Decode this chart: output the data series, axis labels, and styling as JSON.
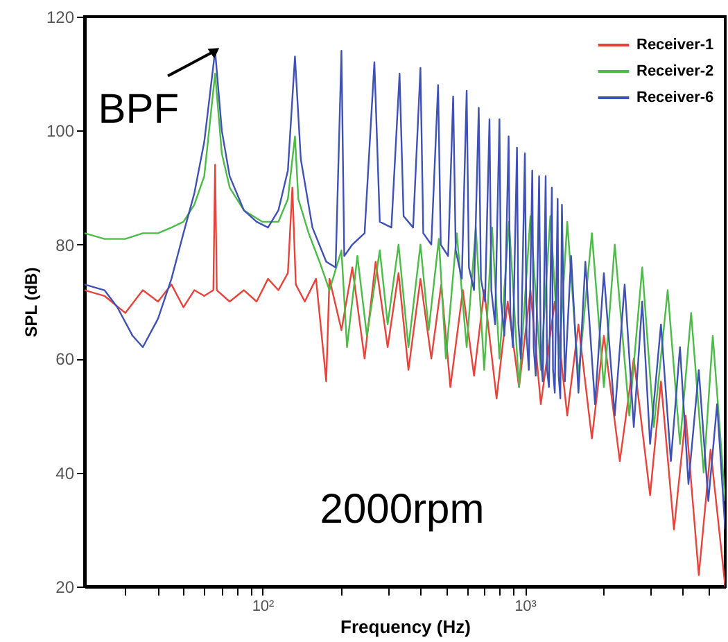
{
  "chart_data": {
    "type": "line",
    "xlabel": "Frequency (Hz)",
    "ylabel": "SPL (dB)",
    "log": "x",
    "xlim": [
      21,
      5800
    ],
    "ylim": [
      20,
      120
    ],
    "xticks": [
      {
        "value": 30,
        "label": null
      },
      {
        "value": 40,
        "label": null
      },
      {
        "value": 50,
        "label": null
      },
      {
        "value": 60,
        "label": null
      },
      {
        "value": 70,
        "label": null
      },
      {
        "value": 80,
        "label": null
      },
      {
        "value": 90,
        "label": null
      },
      {
        "value": 100,
        "label": "10²"
      },
      {
        "value": 200,
        "label": null
      },
      {
        "value": 300,
        "label": null
      },
      {
        "value": 400,
        "label": null
      },
      {
        "value": 500,
        "label": null
      },
      {
        "value": 600,
        "label": null
      },
      {
        "value": 700,
        "label": null
      },
      {
        "value": 800,
        "label": null
      },
      {
        "value": 900,
        "label": null
      },
      {
        "value": 1000,
        "label": "10³"
      },
      {
        "value": 2000,
        "label": null
      },
      {
        "value": 3000,
        "label": null
      },
      {
        "value": 4000,
        "label": null
      },
      {
        "value": 5000,
        "label": null
      }
    ],
    "yticks": [
      20,
      40,
      60,
      80,
      100,
      120
    ],
    "grid": false,
    "legend": "top right",
    "marker": "none",
    "line_style": "solid",
    "annotations": [
      {
        "text": "BPF",
        "x": 66,
        "y": 114
      },
      "2000rpm"
    ],
    "series": [
      {
        "name": "Receiver-1",
        "color": "#e8433a",
        "x": [
          21,
          25,
          30,
          35,
          40,
          45,
          50,
          55,
          60,
          65,
          66,
          67,
          75,
          85,
          95,
          105,
          115,
          125,
          130,
          134,
          145,
          160,
          175,
          180,
          200,
          220,
          245,
          270,
          300,
          330,
          360,
          400,
          440,
          480,
          520,
          580,
          640,
          700,
          780,
          860,
          950,
          1050,
          1150,
          1300,
          1450,
          1600,
          1800,
          2000,
          2300,
          2600,
          3000,
          3300,
          3700,
          4100,
          4600,
          5100,
          5800
        ],
        "values": [
          72,
          71,
          68,
          72,
          70,
          73,
          69,
          72,
          71,
          72,
          94,
          72,
          70,
          72,
          70,
          74,
          72,
          75,
          90,
          73,
          70,
          74,
          56,
          74,
          65,
          76,
          60,
          77,
          62,
          75,
          58,
          74,
          60,
          73,
          55,
          72,
          57,
          72,
          53,
          70,
          55,
          72,
          52,
          70,
          50,
          66,
          46,
          64,
          42,
          60,
          36,
          56,
          30,
          50,
          22,
          44,
          20
        ]
      },
      {
        "name": "Receiver-2",
        "color": "#4cbb47",
        "x": [
          21,
          25,
          30,
          35,
          40,
          45,
          50,
          55,
          60,
          66,
          70,
          75,
          85,
          100,
          115,
          125,
          133,
          137,
          150,
          165,
          180,
          200,
          210,
          230,
          250,
          280,
          300,
          330,
          360,
          400,
          430,
          470,
          500,
          550,
          600,
          650,
          700,
          750,
          800,
          870,
          950,
          1050,
          1150,
          1250,
          1350,
          1450,
          1600,
          1800,
          2000,
          2200,
          2500,
          2800,
          3100,
          3500,
          3900,
          4300,
          4800,
          5200,
          5800
        ],
        "values": [
          82,
          81,
          81,
          82,
          82,
          83,
          84,
          87,
          92,
          110,
          96,
          90,
          86,
          84,
          84,
          88,
          99,
          88,
          82,
          77,
          72,
          79,
          62,
          78,
          64,
          79,
          66,
          80,
          62,
          80,
          65,
          81,
          60,
          82,
          62,
          83,
          58,
          83,
          60,
          84,
          55,
          85,
          58,
          85,
          60,
          84,
          57,
          82,
          55,
          80,
          50,
          76,
          48,
          72,
          45,
          68,
          40,
          64,
          35
        ]
      },
      {
        "name": "Receiver-6",
        "color": "#3f51b5",
        "x": [
          21,
          25,
          28,
          32,
          35,
          40,
          45,
          50,
          55,
          60,
          66,
          70,
          75,
          85,
          95,
          105,
          115,
          125,
          133,
          140,
          155,
          175,
          190,
          200,
          205,
          220,
          245,
          267,
          280,
          310,
          333,
          345,
          375,
          400,
          410,
          440,
          467,
          478,
          510,
          533,
          545,
          575,
          600,
          612,
          640,
          667,
          680,
          705,
          733,
          745,
          770,
          800,
          812,
          835,
          867,
          880,
          900,
          933,
          945,
          965,
          1000,
          1015,
          1035,
          1067,
          1080,
          1100,
          1133,
          1150,
          1170,
          1200,
          1215,
          1235,
          1267,
          1280,
          1300,
          1333,
          1345,
          1365,
          1384,
          1420,
          1500,
          1600,
          1700,
          1850,
          2000,
          2200,
          2400,
          2600,
          2800,
          3000,
          3300,
          3600,
          3900,
          4200,
          4600,
          5000,
          5400,
          5800
        ],
        "values": [
          73,
          72,
          69,
          64,
          62,
          67,
          74,
          82,
          89,
          98,
          114,
          100,
          92,
          86,
          84,
          83,
          86,
          93,
          113,
          95,
          83,
          77,
          76,
          114,
          78,
          80,
          82,
          112,
          84,
          83,
          110,
          85,
          83,
          111,
          82,
          80,
          108,
          80,
          78,
          106,
          79,
          74,
          107,
          76,
          72,
          104,
          74,
          70,
          102,
          72,
          66,
          102,
          70,
          64,
          99,
          68,
          62,
          97,
          66,
          60,
          96,
          64,
          58,
          93,
          62,
          57,
          92,
          60,
          56,
          92,
          58,
          55,
          90,
          58,
          54,
          88,
          57,
          53,
          87,
          56,
          78,
          54,
          77,
          52,
          75,
          50,
          73,
          48,
          70,
          45,
          66,
          42,
          62,
          38,
          58,
          35,
          52,
          30
        ]
      }
    ]
  }
}
